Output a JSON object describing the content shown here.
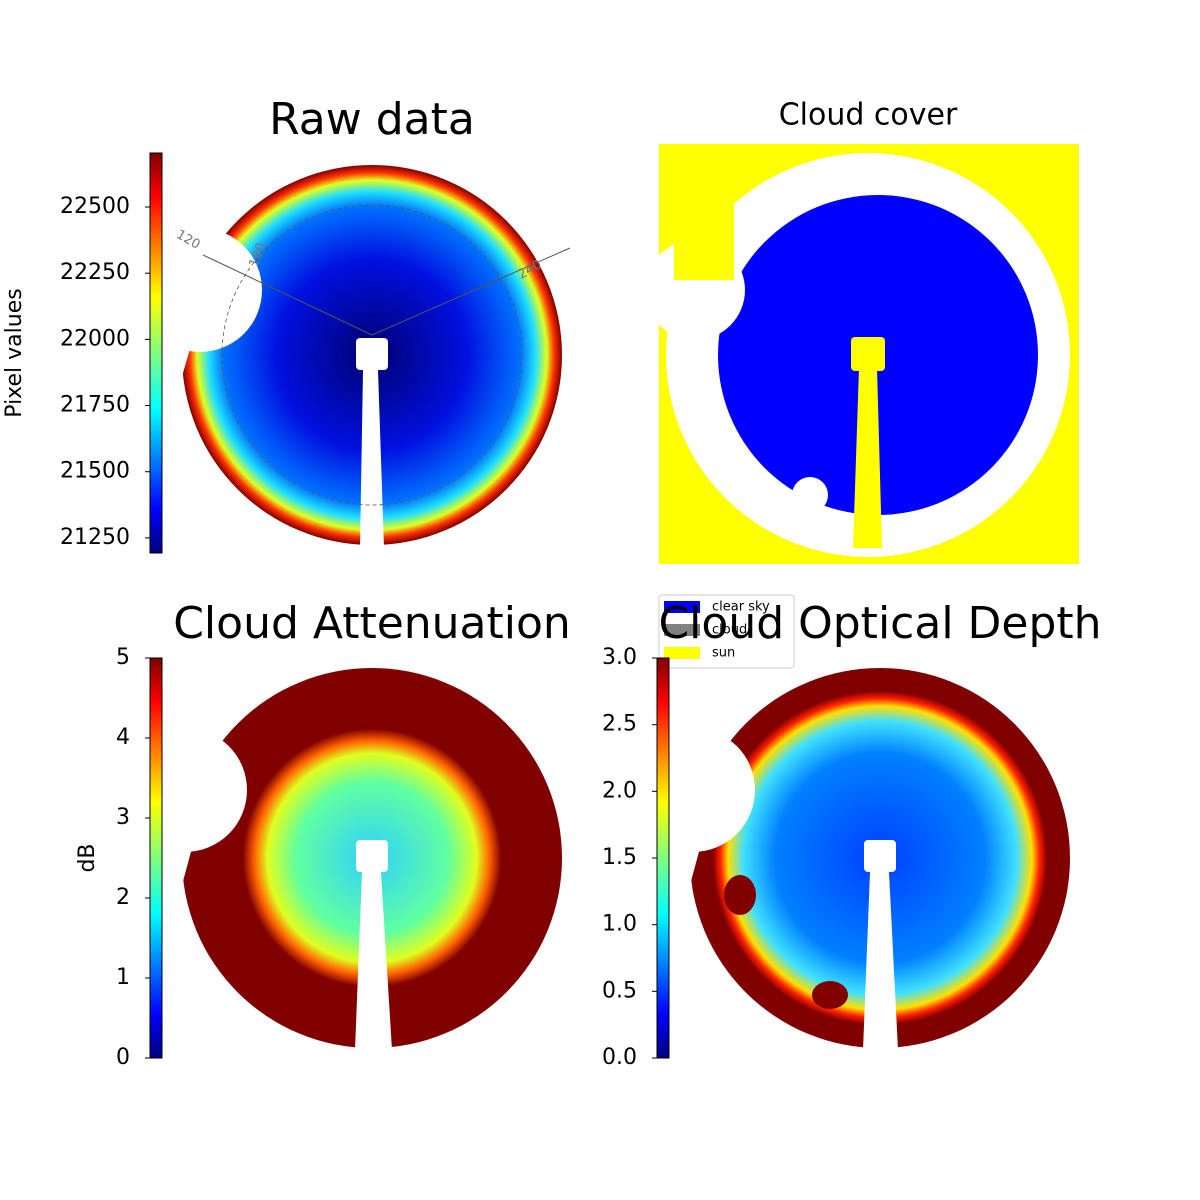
{
  "chart_data": [
    {
      "type": "image",
      "title": "Raw data",
      "colorbar_label": "Pixel values",
      "colormap": "jet",
      "ylim": [
        21193,
        22704
      ],
      "yticks": [
        21250,
        21500,
        21750,
        22000,
        22250,
        22500
      ],
      "annotations": [
        "120",
        "180",
        "240"
      ]
    },
    {
      "type": "image",
      "title": "Cloud cover",
      "legend": [
        {
          "name": "clear sky",
          "color": "#0000ff"
        },
        {
          "name": "cloud",
          "color": "#808080"
        },
        {
          "name": "sun",
          "color": "#ffff00"
        }
      ]
    },
    {
      "type": "image",
      "title": "Cloud Attenuation",
      "colorbar_label": "dB",
      "colormap": "jet",
      "ylim": [
        0,
        5
      ],
      "yticks": [
        0,
        1,
        2,
        3,
        4,
        5
      ]
    },
    {
      "type": "image",
      "title": "Cloud Optical Depth",
      "colormap": "jet",
      "ylim": [
        0,
        3
      ],
      "yticks": [
        {
          "value": 0,
          "label": "0.0"
        },
        0.5,
        {
          "value": 1,
          "label": "1.0"
        },
        1.5,
        {
          "value": 2,
          "label": "2.0"
        },
        2.5,
        {
          "value": 3,
          "label": "3.0"
        }
      ]
    }
  ]
}
